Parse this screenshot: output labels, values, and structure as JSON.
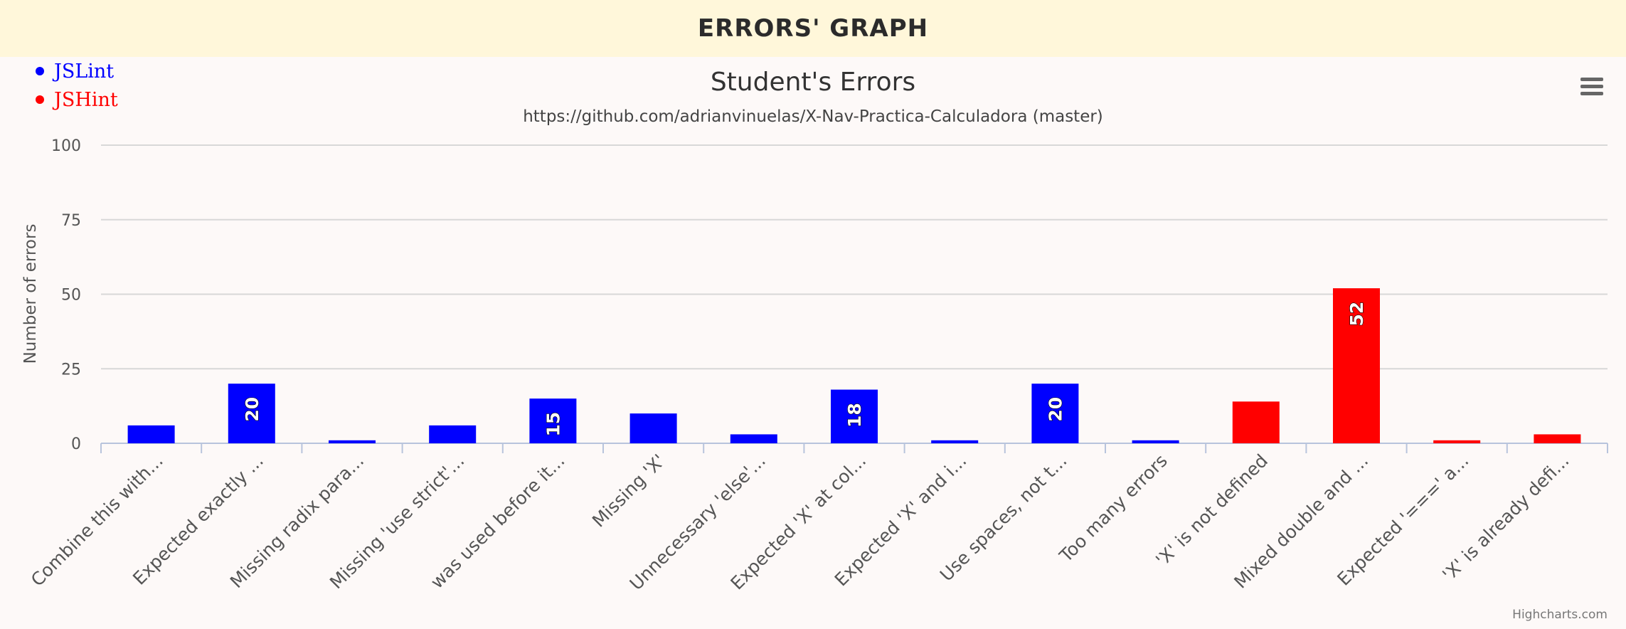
{
  "header": {
    "title": "ERRORS' GRAPH"
  },
  "legend": {
    "items": [
      {
        "label": "JSLint",
        "color": "#0000ff"
      },
      {
        "label": "JSHint",
        "color": "#ff0000"
      }
    ]
  },
  "menu": {
    "icon": "hamburger-menu-icon"
  },
  "credits": "Highcharts.com",
  "chart_data": {
    "type": "bar",
    "title": "Student's Errors",
    "subtitle": "https://github.com/adrianvinuelas/X-Nav-Practica-Calculadora (master)",
    "ylabel": "Number of errors",
    "xlabel": "",
    "ylim": [
      0,
      100
    ],
    "yticks": [
      0,
      25,
      50,
      75,
      100
    ],
    "grid": true,
    "legend_position": "top-left",
    "categories": [
      "Combine this with...",
      "Expected exactly ...",
      "Missing radix para...",
      "Missing 'use strict'...",
      "was used before it...",
      "Missing 'X'",
      "Unnecessary 'else'...",
      "Expected 'X' at col...",
      "Expected 'X' and i...",
      "Use spaces, not t...",
      "Too many errors",
      "'X' is not defined",
      "Mixed double and ...",
      "Expected '===' a...",
      "'X' is already defi..."
    ],
    "values": [
      6,
      20,
      1,
      6,
      15,
      10,
      3,
      18,
      1,
      20,
      1,
      14,
      52,
      1,
      3
    ],
    "series_index": [
      0,
      0,
      0,
      0,
      0,
      0,
      0,
      0,
      0,
      0,
      0,
      1,
      1,
      1,
      1
    ],
    "data_labels": [
      null,
      "20",
      null,
      null,
      "15",
      null,
      null,
      "18",
      null,
      "20",
      null,
      null,
      "52",
      null,
      null
    ],
    "colors": [
      "#0000ff",
      "#ff0000"
    ]
  }
}
